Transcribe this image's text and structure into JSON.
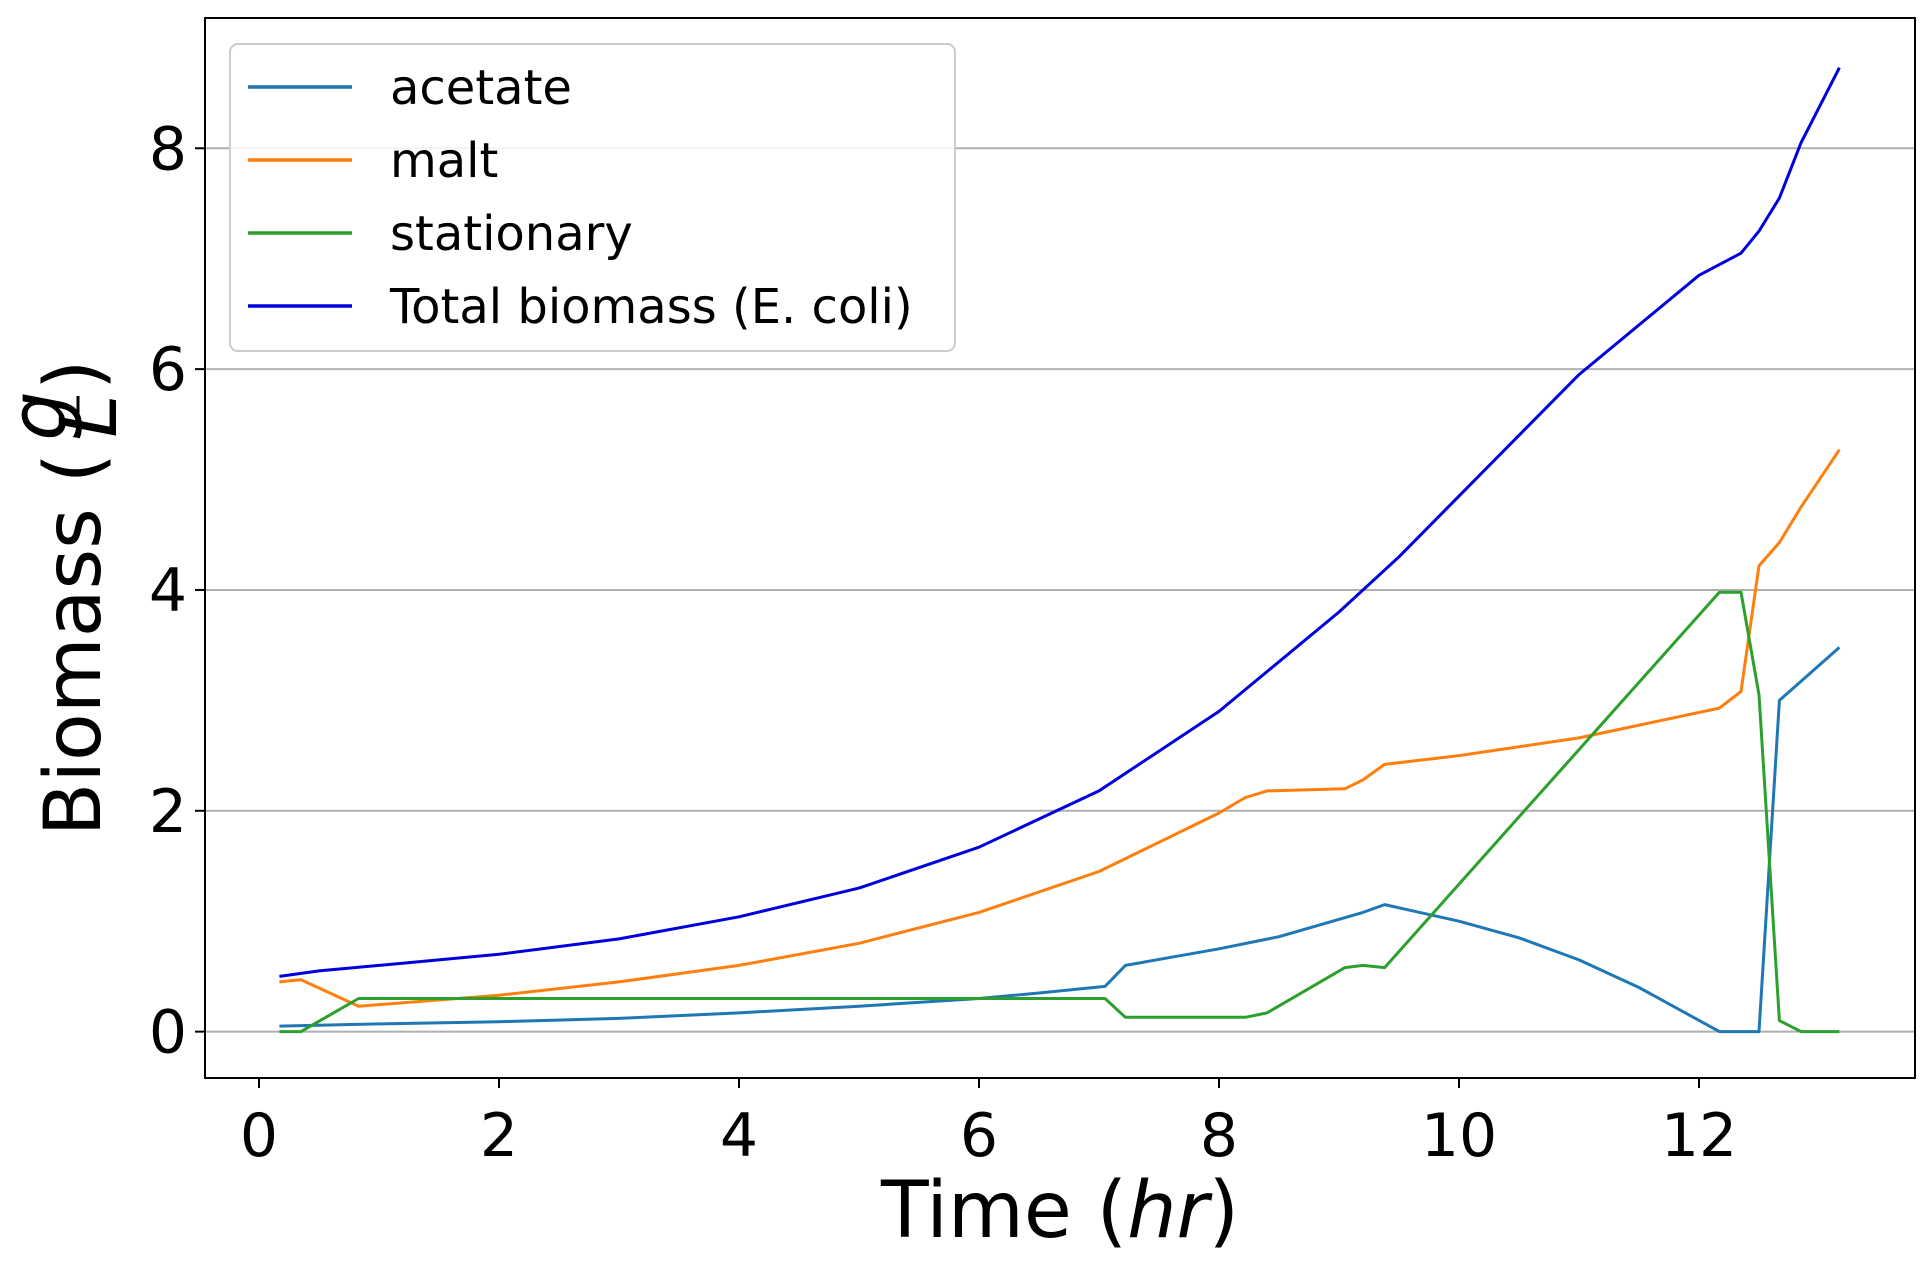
{
  "chart_data": {
    "type": "line",
    "title": "",
    "xlabel_text": "Time (",
    "xlabel_italic": "hr",
    "xlabel_close": ")",
    "ylabel_text": "Biomass (",
    "ylabel_frac_num": "g",
    "ylabel_frac_den": "L",
    "ylabel_close": ")",
    "xlim": [
      -0.45,
      13.8
    ],
    "ylim": [
      -0.42,
      9.18
    ],
    "xticks": [
      0,
      2,
      4,
      6,
      8,
      10,
      12
    ],
    "yticks": [
      0,
      2,
      4,
      6,
      8
    ],
    "grid": "horizontal",
    "legend_position": "top-left",
    "series": [
      {
        "name": "acetate",
        "color": "#1f77b4",
        "x": [
          0.17,
          1,
          2,
          3,
          4,
          5,
          6,
          6.5,
          7.05,
          7.22,
          8,
          8.5,
          9.2,
          9.38,
          10,
          10.5,
          11,
          11.5,
          12.17,
          12.5,
          12.67,
          13.17
        ],
        "y": [
          0.05,
          0.07,
          0.09,
          0.12,
          0.17,
          0.23,
          0.3,
          0.35,
          0.41,
          0.6,
          0.75,
          0.86,
          1.08,
          1.15,
          1.0,
          0.85,
          0.65,
          0.4,
          0.0,
          0.0,
          3.0,
          3.48
        ]
      },
      {
        "name": "malt",
        "color": "#ff7f0e",
        "x": [
          0.17,
          0.35,
          0.83,
          2,
          3,
          4,
          5,
          6,
          7,
          8,
          8.22,
          8.4,
          9.05,
          9.2,
          9.38,
          10,
          11,
          12.17,
          12.35,
          12.5,
          12.67,
          12.85,
          13.17
        ],
        "y": [
          0.45,
          0.47,
          0.23,
          0.33,
          0.45,
          0.6,
          0.8,
          1.08,
          1.45,
          1.98,
          2.12,
          2.18,
          2.2,
          2.28,
          2.42,
          2.5,
          2.66,
          2.93,
          3.08,
          4.22,
          4.43,
          4.75,
          5.27
        ]
      },
      {
        "name": "stationary",
        "color": "#2ca02c",
        "x": [
          0.17,
          0.35,
          0.83,
          7.05,
          7.22,
          8.22,
          8.4,
          9.05,
          9.2,
          9.38,
          12.17,
          12.35,
          12.5,
          12.67,
          12.85,
          13.17
        ],
        "y": [
          0.0,
          0.0,
          0.3,
          0.3,
          0.13,
          0.13,
          0.17,
          0.58,
          0.6,
          0.58,
          3.98,
          3.98,
          3.05,
          0.1,
          0.0,
          0.0
        ]
      },
      {
        "name": "Total biomass (E. coli)",
        "color": "#0000dd",
        "x": [
          0.17,
          0.5,
          1,
          2,
          3,
          4,
          5,
          6,
          7,
          8,
          9,
          9.5,
          10,
          11,
          12,
          12.35,
          12.5,
          12.67,
          12.85,
          13.17
        ],
        "y": [
          0.5,
          0.55,
          0.6,
          0.7,
          0.84,
          1.04,
          1.3,
          1.67,
          2.18,
          2.9,
          3.8,
          4.3,
          4.85,
          5.95,
          6.85,
          7.05,
          7.25,
          7.55,
          8.05,
          8.73
        ]
      }
    ]
  }
}
